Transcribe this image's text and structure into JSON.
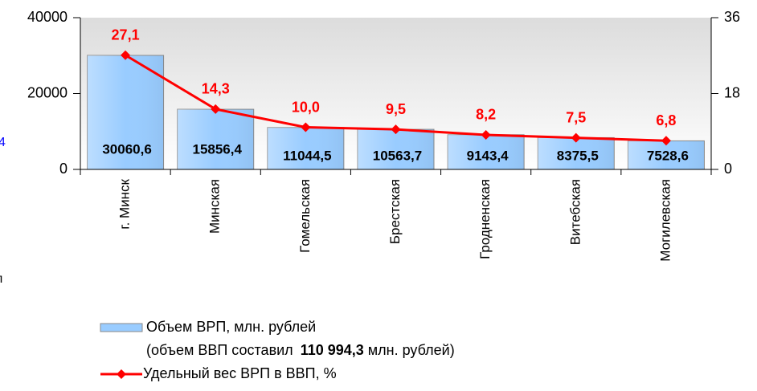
{
  "chart_data": {
    "type": "bar_line",
    "categories": [
      "г. Минск",
      "Минская",
      "Гомельская",
      "Брестская",
      "Гродненская",
      "Витебская",
      "Могилевская"
    ],
    "series": [
      {
        "name": "Объем ВРП, млн. рублей",
        "type": "bar",
        "color": "#99ccff",
        "values": [
          30060.6,
          15856.4,
          11044.5,
          10563.7,
          9143.4,
          8375.5,
          7528.6
        ],
        "value_labels": [
          "30060,6",
          "15856,4",
          "11044,5",
          "10563,7",
          "9143,4",
          "8375,5",
          "7528,6"
        ]
      },
      {
        "name": "Удельный вес ВРП в ВВП, %",
        "type": "line",
        "axis": "y2",
        "color": "#ff0000",
        "values": [
          27.1,
          14.3,
          10.0,
          9.5,
          8.2,
          7.5,
          6.8
        ],
        "value_labels": [
          "27,1",
          "14,3",
          "10,0",
          "9,5",
          "8,2",
          "7,5",
          "6,8"
        ]
      }
    ],
    "legend_note": {
      "before": "(объем ВВП составил",
      "bold": "110 994,3",
      "after": "млн. рублей)"
    },
    "ylim": [
      0,
      40000
    ],
    "yticks": [
      0,
      20000,
      40000
    ],
    "y2lim": [
      0,
      36
    ],
    "y2ticks": [
      0,
      18,
      36
    ],
    "cut_texts": [
      "4",
      "л"
    ]
  }
}
